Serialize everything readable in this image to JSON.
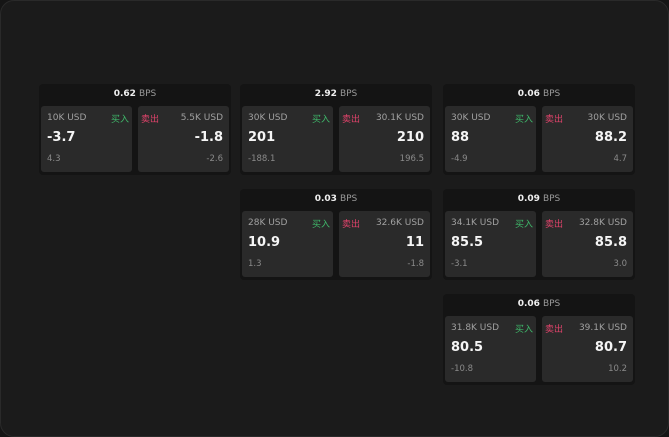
{
  "labels": {
    "unit": "BPS",
    "buy": "买入",
    "sell": "卖出"
  },
  "colors": {
    "buy": "#3fb86a",
    "sell": "#e0436b"
  },
  "cards": [
    {
      "spread": "0.62",
      "buy": {
        "qty": "10K USD",
        "price": "-3.7",
        "change": "4.3"
      },
      "sell": {
        "qty": "5.5K USD",
        "price": "-1.8",
        "change": "-2.6"
      }
    },
    {
      "spread": "2.92",
      "buy": {
        "qty": "30K USD",
        "price": "201",
        "change": "-188.1"
      },
      "sell": {
        "qty": "30.1K USD",
        "price": "210",
        "change": "196.5"
      }
    },
    {
      "spread": "0.06",
      "buy": {
        "qty": "30K USD",
        "price": "88",
        "change": "-4.9"
      },
      "sell": {
        "qty": "30K USD",
        "price": "88.2",
        "change": "4.7"
      }
    },
    {
      "spread": "0.03",
      "buy": {
        "qty": "28K USD",
        "price": "10.9",
        "change": "1.3"
      },
      "sell": {
        "qty": "32.6K USD",
        "price": "11",
        "change": "-1.8"
      }
    },
    {
      "spread": "0.09",
      "buy": {
        "qty": "34.1K USD",
        "price": "85.5",
        "change": "-3.1"
      },
      "sell": {
        "qty": "32.8K USD",
        "price": "85.8",
        "change": "3.0"
      }
    },
    {
      "spread": "0.06",
      "buy": {
        "qty": "31.8K USD",
        "price": "80.5",
        "change": "-10.8"
      },
      "sell": {
        "qty": "39.1K USD",
        "price": "80.7",
        "change": "10.2"
      }
    }
  ]
}
